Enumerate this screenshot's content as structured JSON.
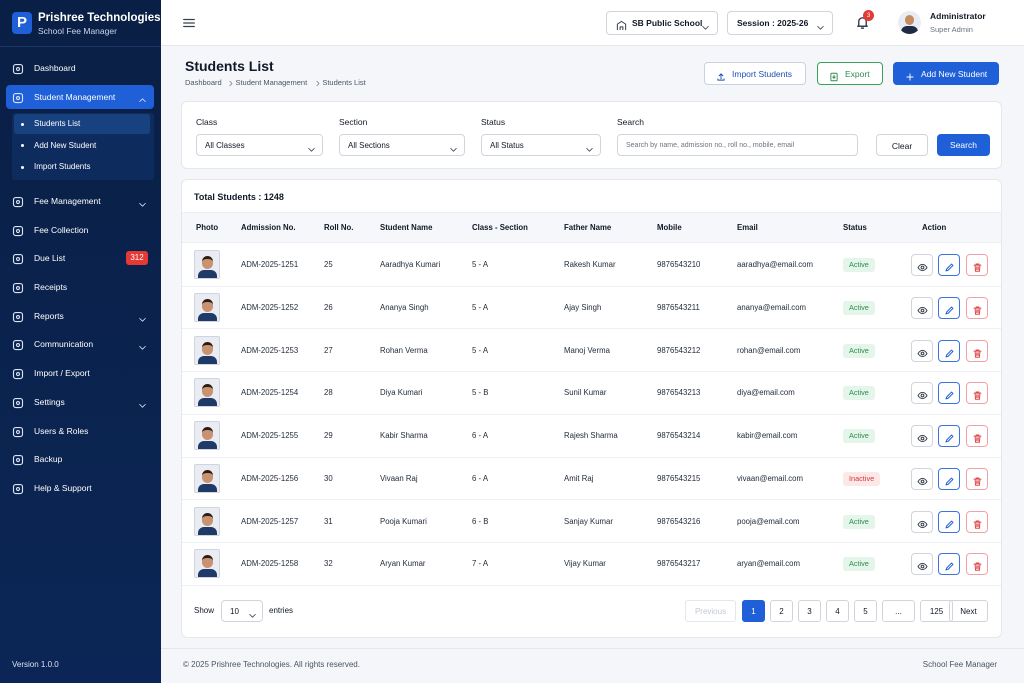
{
  "brand": {
    "logo": "P",
    "name": "Prishree Technologies",
    "tagline": "School Fee Manager"
  },
  "sidebar": {
    "items": [
      {
        "label": "Dashboard"
      },
      {
        "label": "Student Management",
        "expandable": true,
        "active": true,
        "children": [
          "Students List",
          "Add New Student",
          "Import Students"
        ]
      },
      {
        "label": "Fee Management",
        "expandable": true
      },
      {
        "label": "Fee Collection"
      },
      {
        "label": "Due List",
        "badge": "312"
      },
      {
        "label": "Receipts"
      },
      {
        "label": "Reports",
        "expandable": true
      },
      {
        "label": "Communication",
        "expandable": true
      },
      {
        "label": "Import / Export"
      },
      {
        "label": "Settings",
        "expandable": true
      },
      {
        "label": "Users & Roles"
      },
      {
        "label": "Backup"
      },
      {
        "label": "Help & Support"
      }
    ],
    "version": "Version 1.0.0"
  },
  "topbar": {
    "school": "SB Public School",
    "session": "Session : 2025-26",
    "notifications": "3",
    "user": {
      "name": "Administrator",
      "role": "Super Admin"
    }
  },
  "header": {
    "title": "Students List",
    "breadcrumb": [
      "Dashboard",
      "Student Management",
      "Students List"
    ],
    "buttons": [
      "Import Students",
      "Export",
      "Add New Student"
    ]
  },
  "filters": {
    "fields": [
      {
        "label": "Class",
        "value": "All Classes"
      },
      {
        "label": "Section",
        "value": "All Sections"
      },
      {
        "label": "Status",
        "value": "All Status"
      },
      {
        "label": "Search",
        "placeholder": "Search by name, admission no., roll no., mobile, email"
      }
    ],
    "buttons": [
      "Clear",
      "Search"
    ]
  },
  "table": {
    "total": "Total Students : 1248",
    "columns": [
      "Photo",
      "Admission No.",
      "Roll No.",
      "Student Name",
      "Class - Section",
      "Father Name",
      "Mobile",
      "Email",
      "Status",
      "Action"
    ],
    "rows": [
      [
        "ADM-2025-1251",
        "25",
        "Aaradhya Kumari",
        "5 - A",
        "Rakesh Kumar",
        "9876543210",
        "aaradhya@email.com",
        "Active"
      ],
      [
        "ADM-2025-1252",
        "26",
        "Ananya Singh",
        "5 - A",
        "Ajay Singh",
        "9876543211",
        "ananya@email.com",
        "Active"
      ],
      [
        "ADM-2025-1253",
        "27",
        "Rohan Verma",
        "5 - A",
        "Manoj Verma",
        "9876543212",
        "rohan@email.com",
        "Active"
      ],
      [
        "ADM-2025-1254",
        "28",
        "Diya Kumari",
        "5 - B",
        "Sunil Kumar",
        "9876543213",
        "diya@email.com",
        "Active"
      ],
      [
        "ADM-2025-1255",
        "29",
        "Kabir Sharma",
        "6 - A",
        "Rajesh Sharma",
        "9876543214",
        "kabir@email.com",
        "Active"
      ],
      [
        "ADM-2025-1256",
        "30",
        "Vivaan Raj",
        "6 - A",
        "Amit Raj",
        "9876543215",
        "vivaan@email.com",
        "Inactive"
      ],
      [
        "ADM-2025-1257",
        "31",
        "Pooja Kumari",
        "6 - B",
        "Sanjay Kumar",
        "9876543216",
        "pooja@email.com",
        "Active"
      ],
      [
        "ADM-2025-1258",
        "32",
        "Aryan Kumar",
        "7 - A",
        "Vijay Kumar",
        "9876543217",
        "aryan@email.com",
        "Active"
      ]
    ]
  },
  "pagination": {
    "show": "Show",
    "page_size": "10",
    "entries": "entries",
    "previous": "Previous",
    "pages": [
      "1",
      "2",
      "3",
      "4",
      "5",
      "...",
      "125"
    ],
    "next": "Next"
  },
  "footer": {
    "copyright": "© 2025 Prishree Technologies. All rights reserved.",
    "product": "School Fee Manager"
  }
}
